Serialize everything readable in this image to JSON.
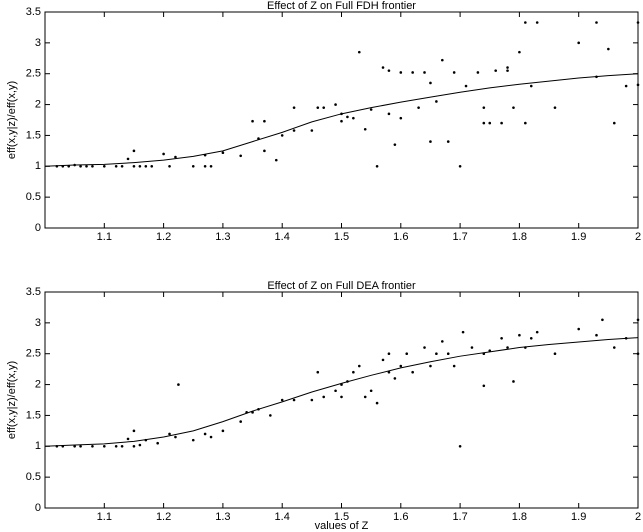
{
  "chart_data": [
    {
      "type": "scatter",
      "title": "Effect of Z on Full FDH frontier",
      "ylabel": "eff(x,y|z)/eff(x,y)",
      "color": "#000000",
      "xlim": [
        1.0,
        2.0
      ],
      "ylim": [
        0,
        3.5
      ],
      "xticks": [
        1.1,
        1.2,
        1.3,
        1.4,
        1.5,
        1.6,
        1.7,
        1.8,
        1.9,
        2
      ],
      "yticks": [
        0,
        0.5,
        1,
        1.5,
        2,
        2.5,
        3,
        3.5
      ],
      "x": [
        1.02,
        1.03,
        1.04,
        1.05,
        1.06,
        1.07,
        1.08,
        1.1,
        1.12,
        1.13,
        1.14,
        1.15,
        1.15,
        1.16,
        1.17,
        1.18,
        1.2,
        1.21,
        1.22,
        1.25,
        1.27,
        1.27,
        1.28,
        1.3,
        1.33,
        1.35,
        1.36,
        1.37,
        1.37,
        1.39,
        1.4,
        1.42,
        1.42,
        1.45,
        1.46,
        1.47,
        1.49,
        1.5,
        1.5,
        1.51,
        1.52,
        1.53,
        1.54,
        1.55,
        1.56,
        1.57,
        1.58,
        1.58,
        1.59,
        1.6,
        1.6,
        1.62,
        1.63,
        1.64,
        1.65,
        1.65,
        1.66,
        1.67,
        1.68,
        1.69,
        1.7,
        1.71,
        1.73,
        1.74,
        1.74,
        1.75,
        1.76,
        1.77,
        1.78,
        1.78,
        1.79,
        1.8,
        1.81,
        1.81,
        1.82,
        1.83,
        1.86,
        1.9,
        1.93,
        1.93,
        1.95,
        1.96,
        1.98,
        2.0,
        2.0
      ],
      "values": [
        1.0,
        1.0,
        1.0,
        1.02,
        1.0,
        1.0,
        1.0,
        1.0,
        1.0,
        1.0,
        1.12,
        1.25,
        1.0,
        1.0,
        1.0,
        1.0,
        1.2,
        1.0,
        1.15,
        1.0,
        1.18,
        1.0,
        1.0,
        1.22,
        1.17,
        1.73,
        1.45,
        1.25,
        1.73,
        1.1,
        1.5,
        1.95,
        1.58,
        1.58,
        1.95,
        1.95,
        2.0,
        1.85,
        1.73,
        1.8,
        1.78,
        2.85,
        1.6,
        1.92,
        1.0,
        2.6,
        2.55,
        1.85,
        1.35,
        2.52,
        1.78,
        2.52,
        1.95,
        2.52,
        1.4,
        2.35,
        2.05,
        2.72,
        1.4,
        2.52,
        1.0,
        2.3,
        2.52,
        1.95,
        1.7,
        1.7,
        2.55,
        1.7,
        2.6,
        2.55,
        1.95,
        2.85,
        1.7,
        3.33,
        2.3,
        3.33,
        1.95,
        3.0,
        2.45,
        3.33,
        2.9,
        1.7,
        2.3,
        3.33,
        2.32
      ],
      "line_x": [
        1.0,
        1.05,
        1.1,
        1.15,
        1.2,
        1.25,
        1.3,
        1.35,
        1.4,
        1.45,
        1.5,
        1.55,
        1.6,
        1.65,
        1.7,
        1.75,
        1.8,
        1.85,
        1.9,
        1.95,
        2.0
      ],
      "line_values": [
        1.0,
        1.02,
        1.03,
        1.06,
        1.1,
        1.16,
        1.25,
        1.4,
        1.55,
        1.72,
        1.85,
        1.95,
        2.04,
        2.12,
        2.2,
        2.27,
        2.33,
        2.38,
        2.43,
        2.47,
        2.5
      ]
    },
    {
      "type": "scatter",
      "title": "Effect of Z on Full DEA frontier",
      "ylabel": "eff(x,y|z)/eff(x,y)",
      "xlabel": "values of Z",
      "color": "#000000",
      "xlim": [
        1.0,
        2.0
      ],
      "ylim": [
        0,
        3.5
      ],
      "xticks": [
        1.1,
        1.2,
        1.3,
        1.4,
        1.5,
        1.6,
        1.7,
        1.8,
        1.9,
        2
      ],
      "yticks": [
        0,
        0.5,
        1,
        1.5,
        2,
        2.5,
        3,
        3.5
      ],
      "x": [
        1.02,
        1.03,
        1.05,
        1.06,
        1.08,
        1.1,
        1.12,
        1.13,
        1.14,
        1.15,
        1.15,
        1.16,
        1.17,
        1.19,
        1.21,
        1.22,
        1.225,
        1.25,
        1.27,
        1.28,
        1.3,
        1.33,
        1.34,
        1.35,
        1.36,
        1.38,
        1.4,
        1.42,
        1.45,
        1.46,
        1.47,
        1.49,
        1.5,
        1.5,
        1.51,
        1.52,
        1.53,
        1.54,
        1.55,
        1.56,
        1.57,
        1.58,
        1.58,
        1.59,
        1.6,
        1.61,
        1.62,
        1.64,
        1.65,
        1.66,
        1.67,
        1.68,
        1.69,
        1.7,
        1.705,
        1.72,
        1.74,
        1.74,
        1.75,
        1.77,
        1.78,
        1.79,
        1.8,
        1.81,
        1.82,
        1.83,
        1.86,
        1.9,
        1.93,
        1.94,
        1.96,
        1.98,
        2.0,
        2.0
      ],
      "values": [
        1.0,
        1.0,
        1.0,
        1.0,
        1.0,
        1.0,
        1.0,
        1.0,
        1.12,
        1.25,
        1.0,
        1.02,
        1.1,
        1.05,
        1.2,
        1.15,
        2.0,
        1.1,
        1.2,
        1.15,
        1.25,
        1.4,
        1.55,
        1.55,
        1.6,
        1.5,
        1.75,
        1.75,
        1.75,
        2.2,
        1.8,
        1.9,
        2.0,
        1.8,
        2.05,
        2.2,
        2.3,
        1.8,
        1.9,
        1.7,
        2.4,
        2.5,
        2.2,
        2.1,
        2.3,
        2.5,
        2.2,
        2.6,
        2.3,
        2.5,
        2.7,
        2.5,
        2.3,
        1.0,
        2.85,
        2.6,
        2.5,
        1.98,
        2.55,
        2.75,
        2.6,
        2.05,
        2.8,
        2.6,
        2.75,
        2.85,
        2.5,
        2.9,
        2.8,
        3.05,
        2.6,
        2.75,
        3.05,
        2.5
      ],
      "line_x": [
        1.0,
        1.05,
        1.1,
        1.15,
        1.2,
        1.25,
        1.3,
        1.35,
        1.4,
        1.45,
        1.5,
        1.55,
        1.6,
        1.65,
        1.7,
        1.75,
        1.8,
        1.85,
        1.9,
        1.95,
        2.0
      ],
      "line_values": [
        1.0,
        1.02,
        1.04,
        1.08,
        1.15,
        1.25,
        1.4,
        1.57,
        1.72,
        1.88,
        2.02,
        2.15,
        2.27,
        2.37,
        2.46,
        2.53,
        2.6,
        2.65,
        2.69,
        2.73,
        2.76
      ]
    }
  ]
}
